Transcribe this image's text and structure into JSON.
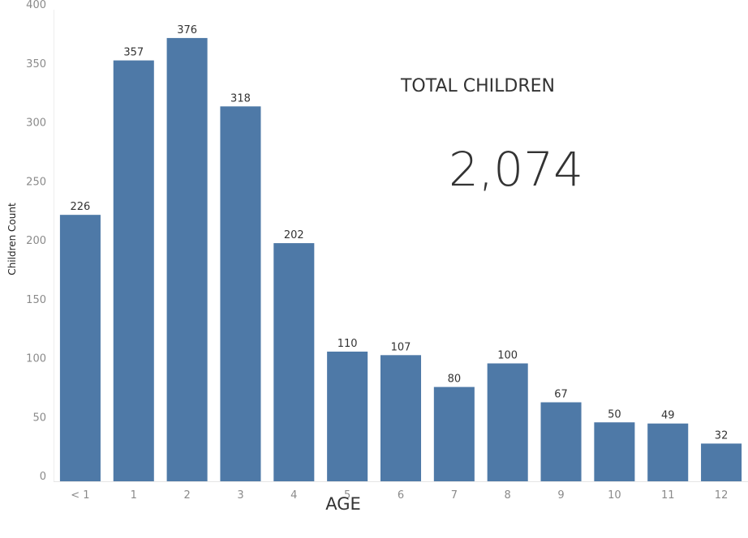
{
  "chart_data": {
    "type": "bar",
    "categories": [
      "< 1",
      "1",
      "2",
      "3",
      "4",
      "5",
      "6",
      "7",
      "8",
      "9",
      "10",
      "11",
      "12"
    ],
    "values": [
      226,
      357,
      376,
      318,
      202,
      110,
      107,
      80,
      100,
      67,
      50,
      49,
      32
    ],
    "xlabel": "AGE",
    "ylabel": "Children Count",
    "ylim": [
      0,
      400
    ],
    "yticks": [
      0,
      50,
      100,
      150,
      200,
      250,
      300,
      350,
      400
    ],
    "bar_color": "#4e79a7",
    "data_labels": true,
    "grid": false
  },
  "kpi": {
    "title": "TOTAL CHILDREN",
    "value": "2,074"
  }
}
